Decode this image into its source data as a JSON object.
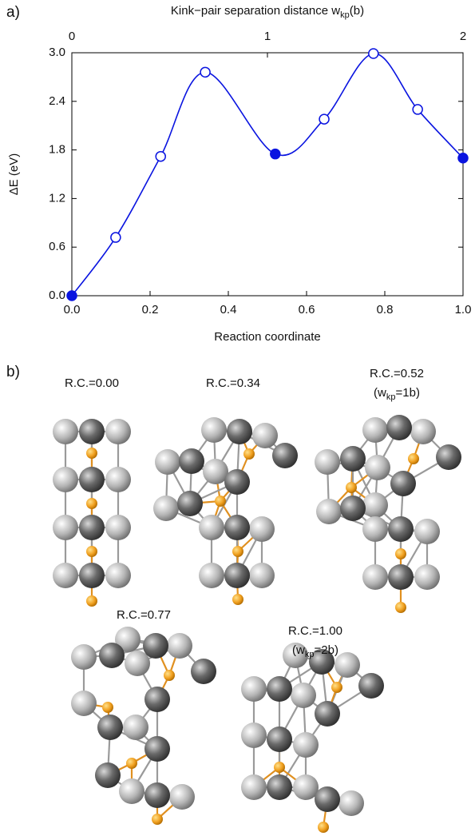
{
  "chart_data": {
    "type": "line",
    "panel_labels": [
      "a)",
      "b)"
    ],
    "x2label": [
      "Kink−pair separation distance w",
      "kp",
      "(b)"
    ],
    "xlabel": "Reaction coordinate",
    "ylabel": "ΔE (eV)",
    "x": [
      0,
      0.112,
      0.227,
      0.341,
      0.52,
      0.645,
      0.771,
      0.884,
      1.0
    ],
    "values": [
      0,
      0.72,
      1.72,
      2.76,
      1.75,
      2.18,
      2.99,
      2.3,
      1.7
    ],
    "marker_filled": [
      true,
      false,
      false,
      false,
      true,
      false,
      false,
      false,
      true
    ],
    "color": "#0a14e0",
    "xlim": [
      0,
      1.0
    ],
    "xticks": [
      {
        "value": 0,
        "label": "0.0"
      },
      0.2,
      0.4,
      0.6,
      0.8,
      {
        "value": 1,
        "label": "1.0"
      }
    ],
    "x2lim": [
      0,
      2
    ],
    "x2ticks": [
      0,
      1,
      2
    ],
    "ylim": [
      0,
      3.0
    ],
    "yticks": [
      {
        "value": 0,
        "label": "0.0"
      },
      0.6,
      1.2,
      1.8,
      2.4,
      {
        "value": 3,
        "label": "3.0"
      }
    ],
    "structures": [
      {
        "label": "R.C.=0.00"
      },
      {
        "label": "R.C.=0.34"
      },
      {
        "label": "R.C.=0.52",
        "sub_label": [
          "(w",
          "kp",
          "=1b)"
        ]
      },
      {
        "label": "R.C.=0.77"
      },
      {
        "label": "R.C.=1.00",
        "sub_label": [
          "(w",
          "kp",
          "=2b)"
        ]
      }
    ]
  }
}
